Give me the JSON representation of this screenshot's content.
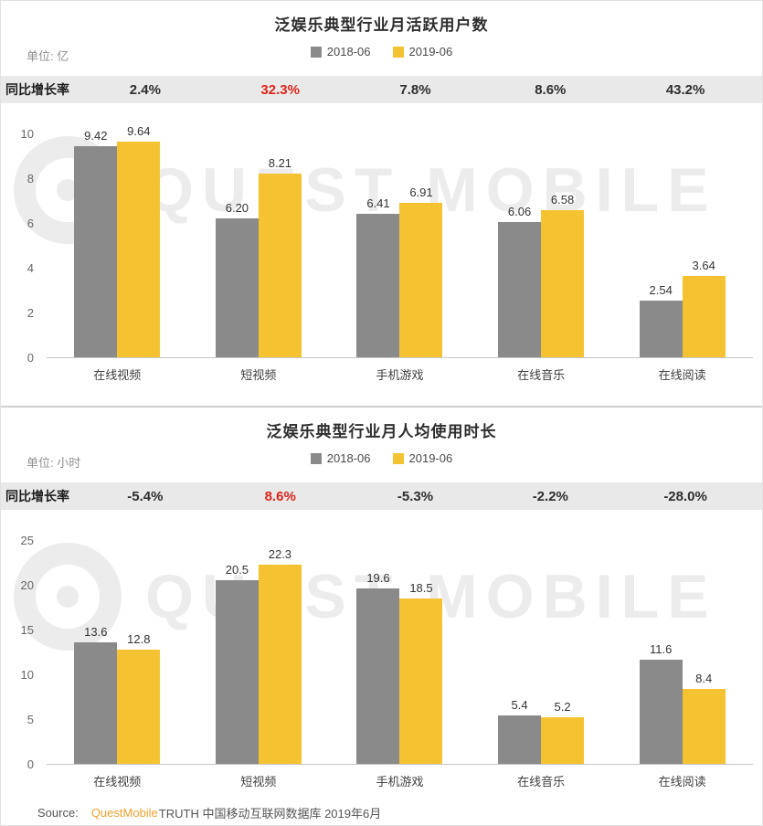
{
  "watermark": {
    "text": "QUEST MOBILE"
  },
  "source": {
    "label": "Source:",
    "brand": "QuestMobile",
    "rest": "TRUTH 中国移动互联网数据库 2019年6月"
  },
  "colors": {
    "series_2018": "#8a8a8a",
    "series_2019": "#f5c332",
    "growth_highlight": "#e2231a",
    "band_bg": "#e9e9e9",
    "brand_orange": "#f0a22e",
    "watermark": "#ececec"
  },
  "chart_data": [
    {
      "type": "bar",
      "title": "泛娱乐典型行业月活跃用户数",
      "unit_label": "单位: 亿",
      "growth_label": "同比增长率",
      "growth_values": [
        "2.4%",
        "32.3%",
        "7.8%",
        "8.6%",
        "43.2%"
      ],
      "growth_highlight_index": 1,
      "categories": [
        "在线视频",
        "短视频",
        "手机游戏",
        "在线音乐",
        "在线阅读"
      ],
      "series": [
        {
          "name": "2018-06",
          "values": [
            9.42,
            6.2,
            6.41,
            6.06,
            2.54
          ]
        },
        {
          "name": "2019-06",
          "values": [
            9.64,
            8.21,
            6.91,
            6.58,
            3.64
          ]
        }
      ],
      "ylim": [
        0,
        10
      ],
      "yticks": [
        0,
        2,
        4,
        6,
        8,
        10
      ],
      "value_decimals": 2,
      "legend_position": "top",
      "grid": false
    },
    {
      "type": "bar",
      "title": "泛娱乐典型行业月人均使用时长",
      "unit_label": "单位: 小时",
      "growth_label": "同比增长率",
      "growth_values": [
        "-5.4%",
        "8.6%",
        "-5.3%",
        "-2.2%",
        "-28.0%"
      ],
      "growth_highlight_index": 1,
      "categories": [
        "在线视频",
        "短视频",
        "手机游戏",
        "在线音乐",
        "在线阅读"
      ],
      "series": [
        {
          "name": "2018-06",
          "values": [
            13.6,
            20.5,
            19.6,
            5.4,
            11.6
          ]
        },
        {
          "name": "2019-06",
          "values": [
            12.8,
            22.3,
            18.5,
            5.2,
            8.4
          ]
        }
      ],
      "ylim": [
        0,
        25
      ],
      "yticks": [
        0,
        5,
        10,
        15,
        20,
        25
      ],
      "value_decimals": 1,
      "legend_position": "top",
      "grid": false
    }
  ]
}
